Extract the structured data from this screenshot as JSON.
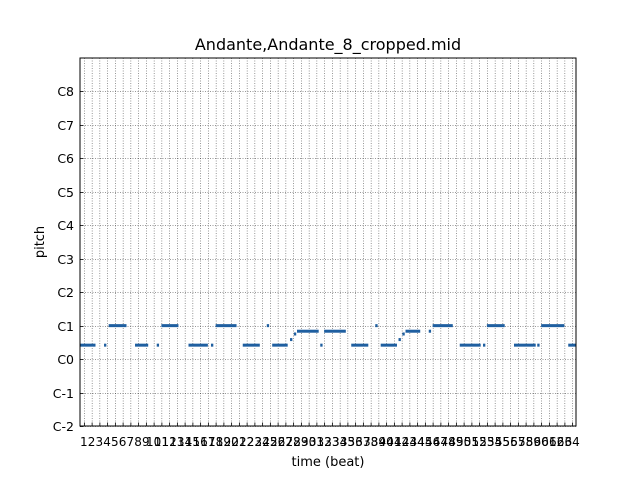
{
  "chart_data": {
    "type": "piano-roll",
    "title": "Andante,Andante_8_cropped.mid",
    "xlabel": "time (beat)",
    "ylabel": "pitch",
    "xlim": [
      0.5,
      64.5
    ],
    "ylim": [
      -24,
      108
    ],
    "grid": true,
    "xtick_labels": [
      "1",
      "2",
      "3",
      "4",
      "5",
      "6",
      "7",
      "8",
      "9",
      "10",
      "11",
      "12",
      "13",
      "14",
      "15",
      "16",
      "17",
      "18",
      "19",
      "20",
      "21",
      "22",
      "23",
      "24",
      "25",
      "26",
      "27",
      "28",
      "29",
      "30",
      "31",
      "32",
      "33",
      "34",
      "35",
      "36",
      "37",
      "38",
      "39",
      "40",
      "41",
      "42",
      "43",
      "44",
      "45",
      "46",
      "47",
      "48",
      "49",
      "50",
      "51",
      "52",
      "53",
      "54",
      "55",
      "56",
      "57",
      "58",
      "59",
      "60",
      "61",
      "62",
      "63",
      "64"
    ],
    "yticks": [
      {
        "label": "C-2",
        "value": -24
      },
      {
        "label": "C-1",
        "value": -12
      },
      {
        "label": "C0",
        "value": 0
      },
      {
        "label": "C1",
        "value": 12
      },
      {
        "label": "C2",
        "value": 24
      },
      {
        "label": "C3",
        "value": 36
      },
      {
        "label": "C4",
        "value": 48
      },
      {
        "label": "C5",
        "value": 60
      },
      {
        "label": "C6",
        "value": 72
      },
      {
        "label": "C7",
        "value": 84
      },
      {
        "label": "C8",
        "value": 96
      }
    ],
    "note_color": "#1f5fa0",
    "notes": [
      {
        "start": 0.5,
        "end": 2.5,
        "pitch": 5
      },
      {
        "start": 3.6,
        "end": 3.9,
        "pitch": 5
      },
      {
        "start": 4.2,
        "end": 6.5,
        "pitch": 12
      },
      {
        "start": 7.6,
        "end": 9.3,
        "pitch": 5
      },
      {
        "start": 10.4,
        "end": 10.7,
        "pitch": 5
      },
      {
        "start": 11.0,
        "end": 13.2,
        "pitch": 12
      },
      {
        "start": 14.5,
        "end": 17.0,
        "pitch": 5
      },
      {
        "start": 17.4,
        "end": 17.7,
        "pitch": 5
      },
      {
        "start": 18.0,
        "end": 20.7,
        "pitch": 12
      },
      {
        "start": 21.5,
        "end": 23.7,
        "pitch": 5
      },
      {
        "start": 24.6,
        "end": 24.9,
        "pitch": 12
      },
      {
        "start": 25.3,
        "end": 27.3,
        "pitch": 5
      },
      {
        "start": 27.6,
        "end": 27.9,
        "pitch": 7
      },
      {
        "start": 28.1,
        "end": 28.4,
        "pitch": 9
      },
      {
        "start": 28.5,
        "end": 31.3,
        "pitch": 10
      },
      {
        "start": 31.5,
        "end": 31.8,
        "pitch": 5
      },
      {
        "start": 32.0,
        "end": 34.8,
        "pitch": 10
      },
      {
        "start": 35.5,
        "end": 37.7,
        "pitch": 5
      },
      {
        "start": 38.6,
        "end": 38.9,
        "pitch": 12
      },
      {
        "start": 39.3,
        "end": 41.4,
        "pitch": 5
      },
      {
        "start": 41.6,
        "end": 41.9,
        "pitch": 7
      },
      {
        "start": 42.1,
        "end": 42.4,
        "pitch": 9
      },
      {
        "start": 42.5,
        "end": 44.4,
        "pitch": 10
      },
      {
        "start": 45.5,
        "end": 45.8,
        "pitch": 10
      },
      {
        "start": 46.0,
        "end": 48.6,
        "pitch": 12
      },
      {
        "start": 49.5,
        "end": 52.2,
        "pitch": 5
      },
      {
        "start": 52.5,
        "end": 52.8,
        "pitch": 5
      },
      {
        "start": 53.0,
        "end": 55.3,
        "pitch": 12
      },
      {
        "start": 56.5,
        "end": 59.3,
        "pitch": 5
      },
      {
        "start": 59.5,
        "end": 59.8,
        "pitch": 5
      },
      {
        "start": 60.0,
        "end": 63.0,
        "pitch": 12
      },
      {
        "start": 63.5,
        "end": 64.5,
        "pitch": 5
      }
    ]
  }
}
